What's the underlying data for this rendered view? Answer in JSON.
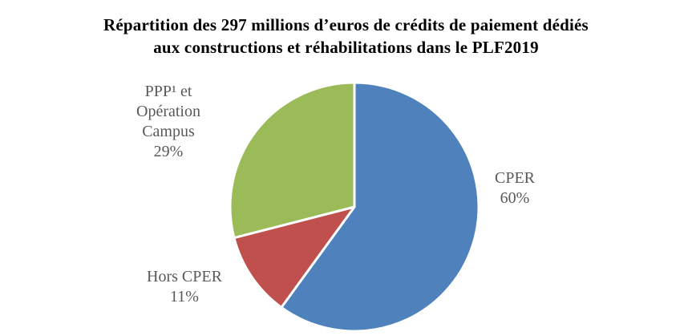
{
  "title": {
    "line1": "Répartition des 297 millions d’euros de crédits de paiement dédiés",
    "line2": "aux constructions et réhabilitations dans le PLF2019"
  },
  "chart_data": {
    "type": "pie",
    "title": "Répartition des 297 millions d’euros de crédits de paiement dédiés aux constructions et réhabilitations dans le PLF2019",
    "total_millions_euros": 297,
    "unit": "%",
    "start_angle_deg": 0,
    "direction": "clockwise",
    "legend_position": "none",
    "slices": [
      {
        "id": "cper",
        "label": "CPER",
        "value": 60,
        "color": "#4F81BD"
      },
      {
        "id": "hors-cper",
        "label": "Hors CPER",
        "value": 11,
        "color": "#C0504D"
      },
      {
        "id": "ppp-operation-campus",
        "label": "PPP¹ et Opération Campus",
        "value": 29,
        "color": "#9BBB59"
      }
    ],
    "labels": {
      "ppp": {
        "lines": [
          "PPP¹ et",
          "Opération",
          "Campus",
          "29%"
        ]
      },
      "cper": {
        "lines": [
          "CPER",
          "60%"
        ]
      },
      "hors_cper": {
        "lines": [
          "Hors CPER",
          "11%"
        ]
      }
    },
    "colors": {
      "slice_separator": "#FFFFFF",
      "label_text": "#595959",
      "title_text": "#000000",
      "background": "#FFFFFF"
    }
  }
}
